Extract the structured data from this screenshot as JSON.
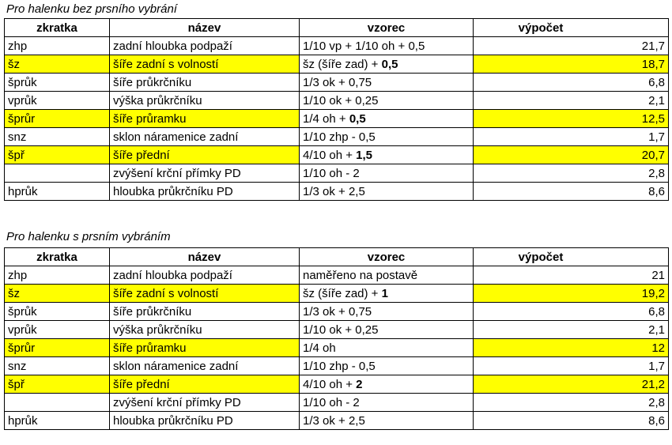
{
  "colors": {
    "highlight": "#ffff00"
  },
  "sections": [
    {
      "caption": "Pro halenku bez prsního vybrání",
      "headers": [
        "zkratka",
        "název",
        "vzorec",
        "výpočet"
      ],
      "rows": [
        {
          "abbr": "zhp",
          "name": "zadní hloubka podpaží",
          "formula": "1/10 vp + 1/10 oh + 0,5",
          "formula_bold": "",
          "value": "21,7",
          "highlight": false
        },
        {
          "abbr": "šz",
          "name": "šíře zadní s volností",
          "formula": "šz (šíře zad) + ",
          "formula_bold": "0,5",
          "value": "18,7",
          "highlight": true
        },
        {
          "abbr": "šprůk",
          "name": "šíře průkrčníku",
          "formula": "1/3 ok + 0,75",
          "formula_bold": "",
          "value": "6,8",
          "highlight": false
        },
        {
          "abbr": "vprůk",
          "name": "výška průkrčníku",
          "formula": "1/10 ok + 0,25",
          "formula_bold": "",
          "value": "2,1",
          "highlight": false
        },
        {
          "abbr": "šprůr",
          "name": "šíře průramku",
          "formula": "1/4 oh + ",
          "formula_bold": "0,5",
          "value": "12,5",
          "highlight": true
        },
        {
          "abbr": "snz",
          "name": "sklon náramenice zadní",
          "formula": "1/10 zhp - 0,5",
          "formula_bold": "",
          "value": "1,7",
          "highlight": false
        },
        {
          "abbr": "špř",
          "name": "šíře přední",
          "formula": "4/10 oh + ",
          "formula_bold": "1,5",
          "value": "20,7",
          "highlight": true
        },
        {
          "abbr": "",
          "name": "zvýšení krční přímky PD",
          "formula": "1/10 oh - 2",
          "formula_bold": "",
          "value": "2,8",
          "highlight": false
        },
        {
          "abbr": "hprůk",
          "name": "hloubka průkrčníku PD",
          "formula": "1/3 ok + 2,5",
          "formula_bold": "",
          "value": "8,6",
          "highlight": false
        }
      ]
    },
    {
      "caption": "Pro halenku s prsním vybráním",
      "headers": [
        "zkratka",
        "název",
        "vzorec",
        "výpočet"
      ],
      "rows": [
        {
          "abbr": "zhp",
          "name": "zadní hloubka podpaží",
          "formula": "naměřeno na postavě",
          "formula_bold": "",
          "value": "21",
          "highlight": false
        },
        {
          "abbr": "šz",
          "name": "šíře zadní s volností",
          "formula": "šz (šíře zad) + ",
          "formula_bold": "1",
          "value": "19,2",
          "highlight": true
        },
        {
          "abbr": "šprůk",
          "name": "šíře průkrčníku",
          "formula": "1/3 ok + 0,75",
          "formula_bold": "",
          "value": "6,8",
          "highlight": false
        },
        {
          "abbr": "vprůk",
          "name": "výška průkrčníku",
          "formula": "1/10 ok + 0,25",
          "formula_bold": "",
          "value": "2,1",
          "highlight": false
        },
        {
          "abbr": "šprůr",
          "name": "šíře průramku",
          "formula": "1/4 oh",
          "formula_bold": "",
          "value": "12",
          "highlight": true
        },
        {
          "abbr": "snz",
          "name": "sklon náramenice zadní",
          "formula": "1/10 zhp - 0,5",
          "formula_bold": "",
          "value": "1,7",
          "highlight": false
        },
        {
          "abbr": "špř",
          "name": "šíře přední",
          "formula": "4/10 oh + ",
          "formula_bold": "2",
          "value": "21,2",
          "highlight": true
        },
        {
          "abbr": "",
          "name": "zvýšení krční přímky PD",
          "formula": "1/10 oh - 2",
          "formula_bold": "",
          "value": "2,8",
          "highlight": false
        },
        {
          "abbr": "hprůk",
          "name": "hloubka průkrčníku PD",
          "formula": "1/3 ok + 2,5",
          "formula_bold": "",
          "value": "8,6",
          "highlight": false
        }
      ]
    }
  ]
}
